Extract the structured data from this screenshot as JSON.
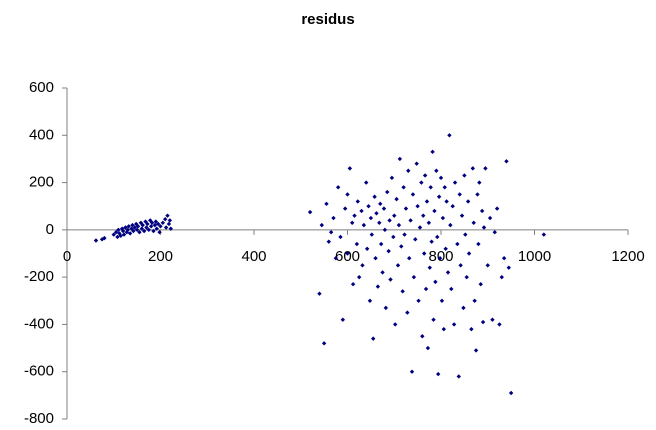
{
  "chart_data": {
    "type": "scatter",
    "title": "residus",
    "color": "#000080",
    "xlim": [
      0,
      1200
    ],
    "xticks": [
      0,
      200,
      400,
      600,
      800,
      1000,
      1200
    ],
    "ylim": [
      -800,
      600
    ],
    "yticks": [
      -800,
      -600,
      -400,
      -200,
      0,
      200,
      400,
      600
    ],
    "x": [
      62,
      75,
      80,
      100,
      105,
      108,
      110,
      112,
      115,
      118,
      120,
      122,
      125,
      128,
      130,
      132,
      135,
      138,
      140,
      142,
      145,
      148,
      150,
      152,
      155,
      158,
      160,
      162,
      165,
      168,
      170,
      172,
      175,
      178,
      180,
      182,
      185,
      188,
      190,
      192,
      195,
      198,
      200,
      205,
      210,
      212,
      215,
      218,
      220,
      222,
      520,
      540,
      545,
      550,
      555,
      560,
      565,
      570,
      575,
      580,
      585,
      590,
      595,
      600,
      600,
      605,
      610,
      612,
      615,
      620,
      622,
      625,
      630,
      632,
      635,
      640,
      642,
      645,
      648,
      650,
      652,
      655,
      658,
      660,
      662,
      665,
      668,
      670,
      672,
      675,
      678,
      680,
      682,
      685,
      688,
      690,
      692,
      695,
      698,
      700,
      702,
      705,
      708,
      710,
      712,
      715,
      718,
      720,
      722,
      725,
      728,
      730,
      732,
      735,
      738,
      740,
      742,
      745,
      748,
      750,
      752,
      755,
      758,
      760,
      762,
      764,
      766,
      768,
      770,
      772,
      774,
      776,
      778,
      780,
      782,
      784,
      786,
      788,
      790,
      792,
      794,
      796,
      798,
      800,
      802,
      804,
      806,
      808,
      810,
      812,
      815,
      818,
      820,
      822,
      825,
      828,
      830,
      835,
      838,
      840,
      842,
      845,
      848,
      850,
      852,
      855,
      858,
      860,
      865,
      868,
      870,
      872,
      875,
      878,
      880,
      882,
      885,
      888,
      890,
      892,
      895,
      900,
      905,
      910,
      915,
      920,
      925,
      930,
      935,
      940,
      945,
      950,
      1020
    ],
    "y": [
      -45,
      -40,
      -35,
      -20,
      -10,
      -30,
      0,
      -15,
      -25,
      5,
      -5,
      -20,
      10,
      -10,
      0,
      15,
      -15,
      5,
      20,
      -5,
      10,
      25,
      0,
      15,
      -10,
      30,
      5,
      20,
      -5,
      35,
      10,
      25,
      0,
      40,
      15,
      30,
      -5,
      20,
      35,
      5,
      25,
      -10,
      15,
      30,
      45,
      10,
      60,
      25,
      40,
      5,
      75,
      -270,
      20,
      -480,
      110,
      -50,
      -10,
      50,
      -120,
      180,
      -30,
      -380,
      90,
      150,
      -100,
      260,
      30,
      -230,
      60,
      -60,
      120,
      -200,
      80,
      -150,
      20,
      200,
      -80,
      100,
      -300,
      50,
      -20,
      -460,
      140,
      -120,
      70,
      -240,
      30,
      110,
      -60,
      -180,
      90,
      0,
      -330,
      160,
      -90,
      40,
      -210,
      220,
      -30,
      60,
      -400,
      130,
      -150,
      20,
      300,
      -70,
      -260,
      180,
      -20,
      90,
      -350,
      250,
      -120,
      40,
      -600,
      150,
      -200,
      -40,
      280,
      100,
      -300,
      10,
      200,
      -450,
      60,
      -100,
      230,
      -250,
      120,
      -500,
      30,
      -160,
      180,
      -50,
      330,
      -380,
      80,
      -220,
      250,
      -30,
      -610,
      140,
      -120,
      220,
      -300,
      50,
      -420,
      180,
      -80,
      120,
      -180,
      400,
      20,
      -250,
      100,
      -400,
      200,
      -60,
      -620,
      150,
      -150,
      60,
      -330,
      230,
      -20,
      -200,
      120,
      -100,
      -420,
      260,
      30,
      -300,
      -510,
      150,
      -60,
      200,
      -230,
      80,
      -390,
      10,
      260,
      -150,
      50,
      -380,
      -10,
      90,
      -400,
      -200,
      -120,
      290,
      -160,
      -690,
      -20
    ]
  }
}
